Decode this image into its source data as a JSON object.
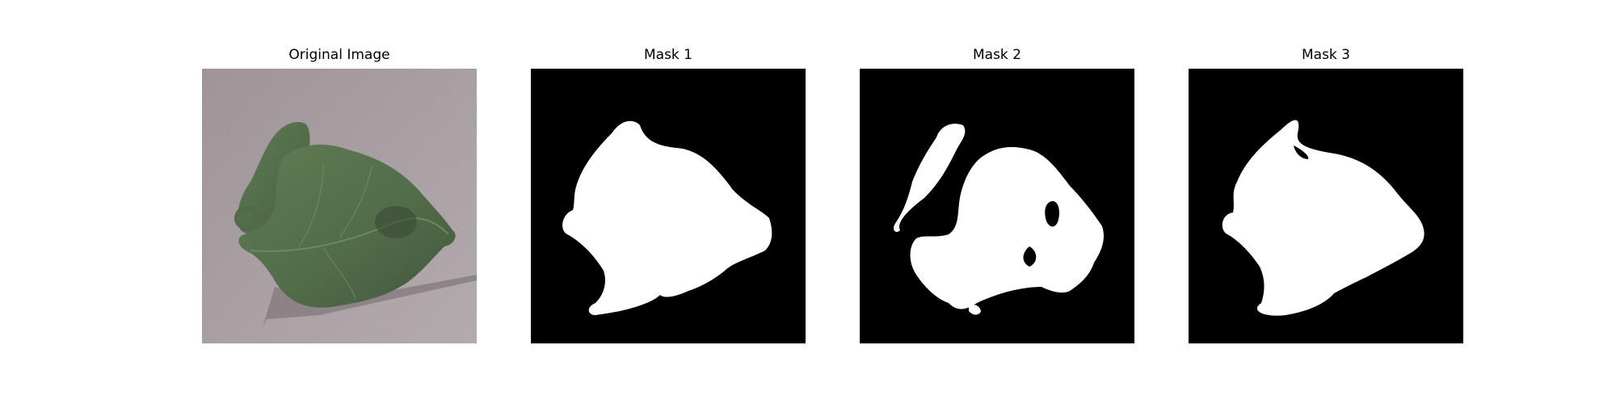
{
  "figure": {
    "panels": [
      {
        "title": "Original Image",
        "kind": "photo",
        "icon": "leaf-photo"
      },
      {
        "title": "Mask 1",
        "kind": "mask",
        "icon": "segmentation-mask"
      },
      {
        "title": "Mask 2",
        "kind": "mask",
        "icon": "segmentation-mask"
      },
      {
        "title": "Mask 3",
        "kind": "mask",
        "icon": "segmentation-mask"
      }
    ],
    "colors": {
      "mask_background": "#000000",
      "mask_foreground": "#ffffff",
      "photo_background": "#a89ea0",
      "leaf_green": "#4f6b46",
      "leaf_dark": "#3a4f34"
    }
  }
}
